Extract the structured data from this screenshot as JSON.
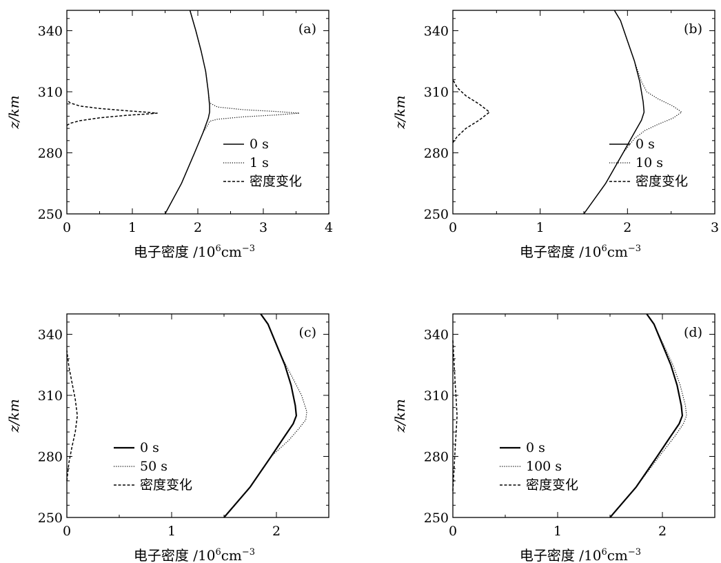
{
  "chart_data": [
    {
      "type": "line",
      "panel_label": "(a)",
      "xlabel": "电子密度 /10⁶cm⁻³",
      "ylabel": "z/km",
      "xlim": [
        0,
        4
      ],
      "ylim": [
        250,
        350
      ],
      "xticks": [
        0,
        1,
        2,
        3,
        4
      ],
      "yticks": [
        250,
        280,
        310,
        340
      ],
      "legend_location": "center-right",
      "series": [
        {
          "name": "0 s",
          "style": "solid",
          "x": [
            1.5,
            1.75,
            1.95,
            2.08,
            2.16,
            2.18,
            2.18,
            2.16,
            2.12,
            2.05,
            1.97,
            1.88
          ],
          "y": [
            250,
            265,
            280,
            290,
            297,
            300,
            303,
            310,
            320,
            330,
            340,
            350
          ]
        },
        {
          "name": "1 s",
          "style": "dotted",
          "x": [
            1.5,
            1.75,
            1.95,
            2.08,
            2.16,
            2.18,
            2.3,
            2.7,
            3.2,
            3.55,
            3.2,
            2.7,
            2.3,
            2.18,
            2.16,
            2.12,
            2.05,
            1.97,
            1.88
          ],
          "y": [
            250,
            265,
            280,
            290,
            294,
            295.5,
            296.5,
            297.7,
            298.6,
            299.5,
            300.3,
            301.2,
            302.5,
            304.5,
            310,
            320,
            330,
            340,
            350
          ]
        },
        {
          "name": "密度变化",
          "style": "dashed",
          "x": [
            0,
            0.05,
            0.2,
            0.5,
            0.9,
            1.2,
            1.38,
            1.2,
            0.9,
            0.5,
            0.2,
            0.05,
            0
          ],
          "y": [
            293.5,
            294.5,
            295.8,
            297.2,
            298.4,
            299.0,
            299.5,
            300.0,
            300.7,
            301.8,
            303.0,
            304.5,
            306
          ]
        }
      ]
    },
    {
      "type": "line",
      "panel_label": "(b)",
      "xlabel": "电子密度 /10⁶cm⁻³",
      "ylabel": "z/km",
      "xlim": [
        0,
        3
      ],
      "ylim": [
        250,
        350
      ],
      "xticks": [
        0,
        1,
        2,
        3
      ],
      "yticks": [
        250,
        280,
        310,
        340
      ],
      "legend_location": "center-right",
      "series": [
        {
          "name": "0 s",
          "style": "solid",
          "x": [
            1.5,
            1.75,
            1.95,
            2.08,
            2.16,
            2.19,
            2.18,
            2.14,
            2.08,
            2.0,
            1.92,
            1.85
          ],
          "y": [
            250,
            265,
            280,
            290,
            296,
            300,
            305,
            315,
            325,
            335,
            345,
            350
          ]
        },
        {
          "name": "10 s",
          "style": "dotted",
          "x": [
            1.5,
            1.75,
            1.95,
            2.08,
            2.2,
            2.35,
            2.52,
            2.62,
            2.52,
            2.35,
            2.22,
            2.16,
            2.08,
            2.0,
            1.92,
            1.85
          ],
          "y": [
            250,
            265,
            280,
            287,
            291,
            294,
            297,
            300,
            303,
            306.5,
            310,
            315,
            325,
            335,
            345,
            350
          ]
        },
        {
          "name": "密度变化",
          "style": "dashed",
          "x": [
            0,
            0.05,
            0.15,
            0.3,
            0.42,
            0.3,
            0.15,
            0.05,
            0
          ],
          "y": [
            285,
            288,
            292,
            296,
            300,
            304,
            308,
            312,
            316
          ]
        }
      ]
    },
    {
      "type": "line",
      "panel_label": "(c)",
      "xlabel": "电子密度 /10⁶cm⁻³",
      "ylabel": "z/km",
      "xlim": [
        0,
        2.5
      ],
      "ylim": [
        250,
        350
      ],
      "xticks": [
        0,
        1,
        2
      ],
      "yticks": [
        250,
        280,
        310,
        340
      ],
      "legend_location": "center-left",
      "series": [
        {
          "name": "0 s",
          "style": "solid",
          "x": [
            1.5,
            1.75,
            1.95,
            2.08,
            2.16,
            2.19,
            2.18,
            2.14,
            2.08,
            2.0,
            1.92,
            1.85
          ],
          "y": [
            250,
            265,
            280,
            290,
            296,
            300,
            305,
            315,
            325,
            335,
            345,
            350
          ]
        },
        {
          "name": "50 s",
          "style": "dotted",
          "x": [
            1.5,
            1.75,
            1.95,
            2.12,
            2.22,
            2.28,
            2.29,
            2.24,
            2.14,
            2.02,
            1.92,
            1.85
          ],
          "y": [
            250,
            265,
            280,
            288,
            294,
            298,
            302,
            310,
            320,
            332,
            345,
            350
          ]
        },
        {
          "name": "密度变化",
          "style": "dashed",
          "x": [
            0,
            0.02,
            0.05,
            0.08,
            0.1,
            0.08,
            0.05,
            0.02,
            0
          ],
          "y": [
            268,
            277,
            285,
            292,
            300,
            308,
            316,
            324,
            332
          ]
        }
      ]
    },
    {
      "type": "line",
      "panel_label": "(d)",
      "xlabel": "电子密度 /10⁶cm⁻³",
      "ylabel": "z/km",
      "xlim": [
        0,
        2.5
      ],
      "ylim": [
        250,
        350
      ],
      "xticks": [
        0,
        1,
        2
      ],
      "yticks": [
        250,
        280,
        310,
        340
      ],
      "legend_location": "center-left",
      "series": [
        {
          "name": "0 s",
          "style": "solid",
          "x": [
            1.5,
            1.75,
            1.95,
            2.08,
            2.16,
            2.19,
            2.18,
            2.14,
            2.08,
            2.0,
            1.92,
            1.85
          ],
          "y": [
            250,
            265,
            280,
            290,
            296,
            300,
            305,
            315,
            325,
            335,
            345,
            350
          ]
        },
        {
          "name": "100 s",
          "style": "dotted",
          "x": [
            1.5,
            1.75,
            1.97,
            2.12,
            2.2,
            2.23,
            2.22,
            2.17,
            2.1,
            2.01,
            1.92,
            1.85
          ],
          "y": [
            250,
            265,
            280,
            290,
            296,
            300,
            305,
            315,
            325,
            335,
            345,
            350
          ]
        },
        {
          "name": "密度变化",
          "style": "dashed",
          "x": [
            0,
            0.01,
            0.02,
            0.03,
            0.04,
            0.03,
            0.02,
            0.01,
            0
          ],
          "y": [
            263,
            272,
            282,
            291,
            300,
            309,
            318,
            328,
            337
          ]
        }
      ]
    }
  ]
}
